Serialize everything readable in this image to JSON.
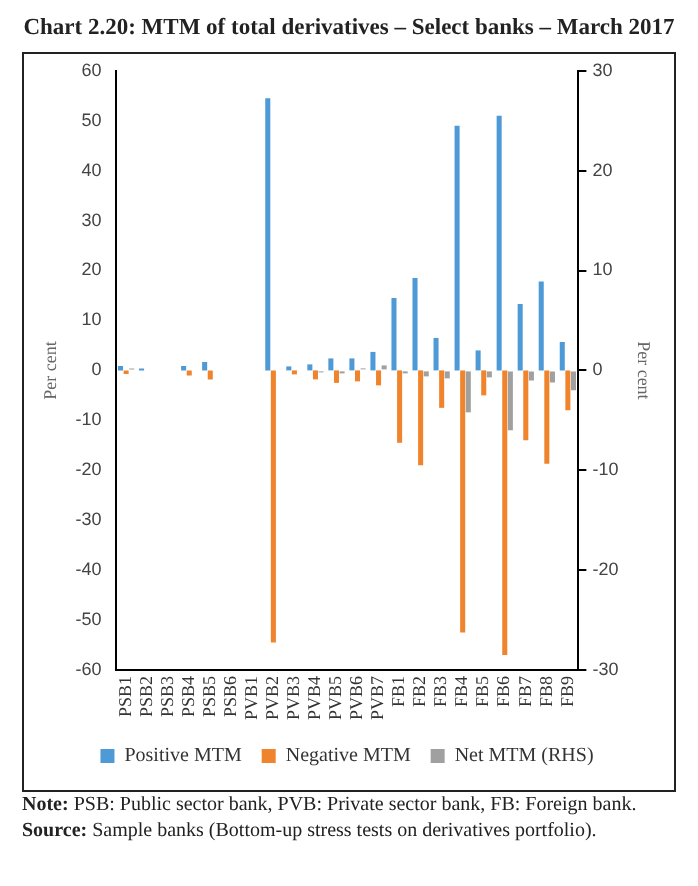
{
  "chart_data": {
    "type": "bar",
    "title": "Chart 2.20: MTM of total derivatives – Select banks – March 2017",
    "categories": [
      "PSB1",
      "PSB2",
      "PSB3",
      "PSB4",
      "PSB5",
      "PSB6",
      "PVB1",
      "PVB2",
      "PVB3",
      "PVB4",
      "PVB5",
      "PVB6",
      "PVB7",
      "FB1",
      "FB2",
      "FB3",
      "FB4",
      "FB5",
      "FB6",
      "FB7",
      "FB8",
      "FB9"
    ],
    "series": [
      {
        "name": "Positive MTM",
        "color": "#4e9ad6",
        "values": [
          0.9,
          0.4,
          0,
          0.9,
          1.7,
          0,
          0,
          54.5,
          0.8,
          1.2,
          2.4,
          2.4,
          3.7,
          14.5,
          18.5,
          6.5,
          49,
          4,
          51,
          13.3,
          17.8,
          5.7
        ]
      },
      {
        "name": "Negative MTM",
        "color": "#f0842c",
        "values": [
          -0.7,
          0,
          0,
          -1,
          -1.8,
          0,
          0,
          -54.5,
          -0.8,
          -1.8,
          -2.5,
          -2.2,
          -3,
          -14.5,
          -19,
          -7.5,
          -52.5,
          -5,
          -57,
          -14,
          -18.7,
          -8
        ]
      },
      {
        "name": "Net MTM (RHS)",
        "color": "#a0a0a0",
        "axis": "y2",
        "values": [
          0.2,
          0,
          0,
          0,
          0,
          0,
          0,
          0,
          0,
          -0.2,
          -0.3,
          0.2,
          0.5,
          -0.3,
          -0.6,
          -0.8,
          -4.2,
          -0.7,
          -6,
          -1,
          -1.2,
          -2
        ]
      }
    ],
    "ylim": [
      -60,
      60
    ],
    "yticks": [
      -60,
      -50,
      -40,
      -30,
      -20,
      -10,
      0,
      10,
      20,
      30,
      40,
      50,
      60
    ],
    "y2lim": [
      -30,
      30
    ],
    "y2ticks": [
      -30,
      -20,
      -10,
      0,
      10,
      20,
      30
    ],
    "ylabel": "Per cent",
    "y2label": "Per cent",
    "grid": false,
    "legend": "bottom",
    "annotations": [
      "Note: PSB: Public sector bank, PVB: Private sector bank, FB: Foreign bank.",
      "Source: Sample banks (Bottom-up stress tests on derivatives portfolio)."
    ]
  }
}
